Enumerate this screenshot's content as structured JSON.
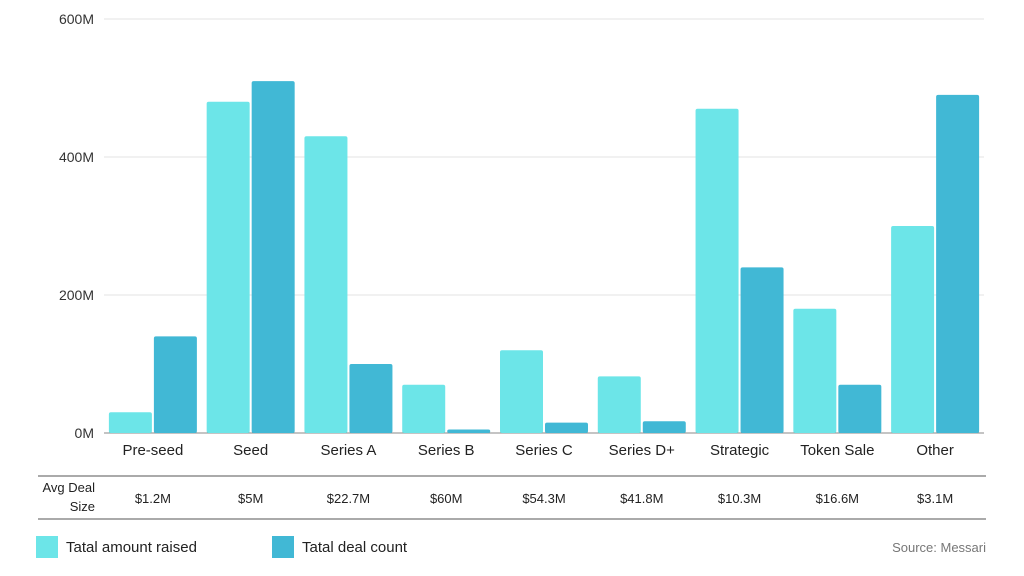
{
  "chart_data": {
    "type": "bar",
    "categories": [
      "Pre-seed",
      "Seed",
      "Series A",
      "Series B",
      "Series C",
      "Series D+",
      "Strategic",
      "Token Sale",
      "Other"
    ],
    "series": [
      {
        "name": "Tatal amount raised",
        "color": "#6ce5e8",
        "values": [
          30,
          480,
          430,
          70,
          120,
          82,
          470,
          180,
          300
        ]
      },
      {
        "name": "Tatal deal count",
        "color": "#41b8d5",
        "values": [
          140,
          510,
          100,
          5,
          15,
          17,
          240,
          70,
          490
        ]
      }
    ],
    "y_ticks": [
      "0M",
      "200M",
      "400M",
      "600M"
    ],
    "y_tick_values": [
      0,
      200,
      400,
      600
    ],
    "ylim": [
      0,
      600
    ],
    "grid": true,
    "legend_position": "bottom-left",
    "table": {
      "row_label_line1": "Avg Deal",
      "row_label_line2": "Size",
      "values": [
        "$1.2M",
        "$5M",
        "$22.7M",
        "$60M",
        "$54.3M",
        "$41.8M",
        "$10.3M",
        "$16.6M",
        "$3.1M"
      ]
    },
    "source": "Source: Messari"
  }
}
